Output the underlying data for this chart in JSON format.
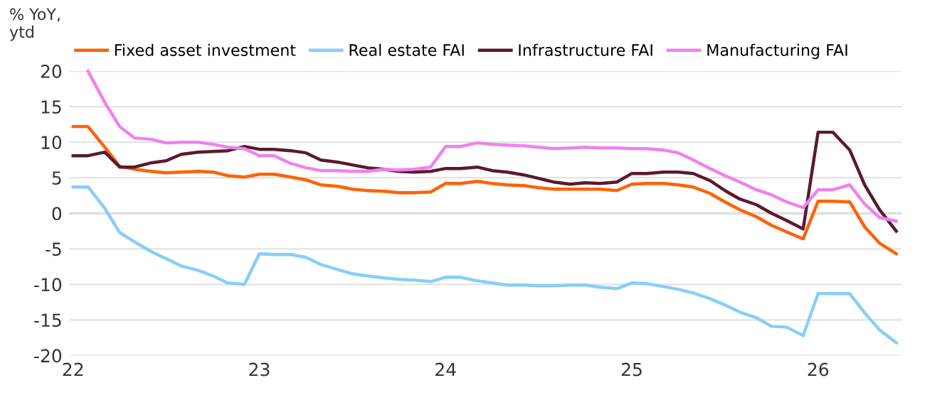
{
  "chart_data": {
    "type": "line",
    "ylabel": "% YoY,\nytd",
    "x": [
      22.0,
      22.08,
      22.17,
      22.25,
      22.33,
      22.42,
      22.5,
      22.58,
      22.67,
      22.75,
      22.83,
      22.92,
      23.0,
      23.08,
      23.17,
      23.25,
      23.33,
      23.42,
      23.5,
      23.58,
      23.67,
      23.75,
      23.83,
      23.92,
      24.0,
      24.08,
      24.17,
      24.25,
      24.33,
      24.42,
      24.5,
      24.58,
      24.67,
      24.75,
      24.83,
      24.92,
      25.0,
      25.08,
      25.17,
      25.25,
      25.33,
      25.42,
      25.5,
      25.58,
      25.67,
      25.75,
      25.83,
      25.92,
      26.0,
      26.08,
      26.17,
      26.25,
      26.33,
      26.42
    ],
    "series": [
      {
        "name": "Fixed asset investment",
        "color": "#ff6200",
        "values": [
          12.2,
          12.2,
          9.3,
          6.6,
          6.2,
          5.9,
          5.7,
          5.8,
          5.9,
          5.8,
          5.3,
          5.1,
          5.5,
          5.5,
          5.1,
          4.7,
          4.0,
          3.8,
          3.4,
          3.2,
          3.1,
          2.9,
          2.9,
          3.0,
          4.2,
          4.2,
          4.5,
          4.2,
          4.0,
          3.9,
          3.6,
          3.4,
          3.4,
          3.4,
          3.4,
          3.2,
          4.1,
          4.2,
          4.2,
          4.0,
          3.7,
          2.8,
          1.6,
          0.5,
          -0.5,
          -1.7,
          -2.6,
          -3.6,
          1.7,
          1.7,
          1.6,
          -1.9,
          -4.2,
          -5.7
        ]
      },
      {
        "name": "Real estate FAI",
        "color": "#87cefa",
        "values": [
          3.7,
          3.7,
          0.7,
          -2.7,
          -4.0,
          -5.4,
          -6.4,
          -7.4,
          -8.0,
          -8.8,
          -9.8,
          -10.0,
          -5.7,
          -5.8,
          -5.8,
          -6.2,
          -7.2,
          -7.9,
          -8.5,
          -8.8,
          -9.1,
          -9.3,
          -9.4,
          -9.6,
          -9.0,
          -9.0,
          -9.5,
          -9.8,
          -10.1,
          -10.1,
          -10.2,
          -10.2,
          -10.1,
          -10.1,
          -10.4,
          -10.6,
          -9.8,
          -9.9,
          -10.3,
          -10.7,
          -11.2,
          -12.0,
          -12.9,
          -13.9,
          -14.7,
          -15.9,
          -16.0,
          -17.2,
          -11.3,
          -11.3,
          -11.3,
          -14.0,
          -16.4,
          -18.2
        ]
      },
      {
        "name": "Infrastructure FAI",
        "color": "#5a1a2e",
        "values": [
          8.1,
          8.1,
          8.6,
          6.5,
          6.5,
          7.1,
          7.4,
          8.3,
          8.6,
          8.7,
          8.8,
          9.4,
          9.0,
          9.0,
          8.8,
          8.5,
          7.5,
          7.2,
          6.8,
          6.4,
          6.2,
          5.9,
          5.8,
          5.9,
          6.3,
          6.3,
          6.5,
          6.0,
          5.8,
          5.4,
          4.9,
          4.4,
          4.1,
          4.3,
          4.2,
          4.4,
          5.6,
          5.6,
          5.8,
          5.8,
          5.6,
          4.6,
          3.2,
          2.0,
          1.2,
          0.0,
          -1.0,
          -2.2,
          11.4,
          11.4,
          8.9,
          4.0,
          0.5,
          -2.5
        ]
      },
      {
        "name": "Manufacturing FAI",
        "color": "#ee82ee",
        "values": [
          null,
          20.0,
          15.6,
          12.2,
          10.6,
          10.4,
          9.9,
          10.0,
          10.0,
          9.7,
          9.3,
          9.1,
          8.1,
          8.1,
          7.0,
          6.4,
          6.0,
          6.0,
          5.9,
          5.9,
          6.2,
          6.1,
          6.2,
          6.5,
          9.4,
          9.4,
          9.9,
          9.7,
          9.6,
          9.5,
          9.3,
          9.1,
          9.2,
          9.3,
          9.2,
          9.2,
          9.1,
          9.1,
          8.9,
          8.5,
          7.5,
          6.3,
          5.3,
          4.4,
          3.3,
          2.6,
          1.6,
          0.8,
          3.3,
          3.3,
          4.0,
          1.3,
          -0.6,
          -1.1
        ]
      }
    ],
    "xlim": [
      21.98,
      26.45
    ],
    "xticks": [
      22,
      23,
      24,
      25,
      26
    ],
    "ylim": [
      -20,
      20
    ],
    "yticks": [
      -20,
      -15,
      -10,
      -5,
      0,
      5,
      10,
      15,
      20
    ],
    "grid": "y",
    "legend": "top",
    "marker": "none",
    "line_style": "solid"
  }
}
